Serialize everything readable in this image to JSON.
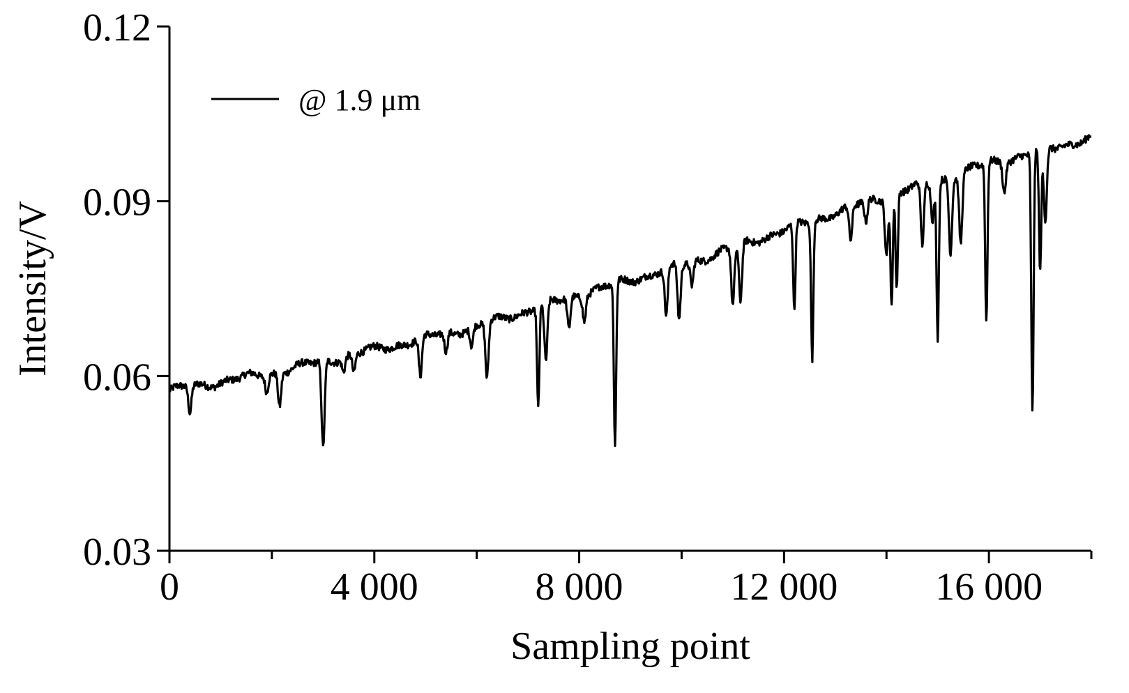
{
  "chart_data": {
    "type": "line",
    "title": "",
    "xlabel": "Sampling point",
    "ylabel": "Intensity/V",
    "xlim": [
      0,
      18000
    ],
    "ylim": [
      0.03,
      0.12
    ],
    "xticks": [
      {
        "value": 0,
        "label": "0"
      },
      {
        "value": 4000,
        "label": "4 000"
      },
      {
        "value": 8000,
        "label": "8 000"
      },
      {
        "value": 12000,
        "label": "12 000"
      },
      {
        "value": 16000,
        "label": "16 000"
      }
    ],
    "yticks": [
      {
        "value": 0.03,
        "label": "0.03"
      },
      {
        "value": 0.06,
        "label": "0.06"
      },
      {
        "value": 0.09,
        "label": "0.09"
      },
      {
        "value": 0.12,
        "label": "0.12"
      }
    ],
    "grid": false,
    "legend": {
      "position": "top-left"
    },
    "series": [
      {
        "name": "@ 1.9 μm",
        "color": "#000000",
        "baseline": {
          "x": [
            0,
            2000,
            4000,
            6000,
            8000,
            10000,
            12000,
            13000,
            14000,
            15000,
            16000,
            17000,
            18000
          ],
          "y": [
            0.0575,
            0.0605,
            0.0645,
            0.0685,
            0.074,
            0.079,
            0.085,
            0.088,
            0.091,
            0.0935,
            0.0965,
            0.0985,
            0.101
          ]
        },
        "dips": [
          {
            "x": 400,
            "y": 0.0535
          },
          {
            "x": 1900,
            "y": 0.0575
          },
          {
            "x": 2150,
            "y": 0.055
          },
          {
            "x": 3000,
            "y": 0.0475
          },
          {
            "x": 3400,
            "y": 0.061
          },
          {
            "x": 3600,
            "y": 0.0605
          },
          {
            "x": 4900,
            "y": 0.0595
          },
          {
            "x": 5400,
            "y": 0.064
          },
          {
            "x": 5900,
            "y": 0.065
          },
          {
            "x": 6200,
            "y": 0.0595
          },
          {
            "x": 7200,
            "y": 0.0545
          },
          {
            "x": 7350,
            "y": 0.062
          },
          {
            "x": 7800,
            "y": 0.068
          },
          {
            "x": 8100,
            "y": 0.07
          },
          {
            "x": 8700,
            "y": 0.0475
          },
          {
            "x": 9700,
            "y": 0.07
          },
          {
            "x": 9950,
            "y": 0.0695
          },
          {
            "x": 10200,
            "y": 0.0755
          },
          {
            "x": 11000,
            "y": 0.072
          },
          {
            "x": 11150,
            "y": 0.0725
          },
          {
            "x": 12200,
            "y": 0.0705
          },
          {
            "x": 12550,
            "y": 0.063
          },
          {
            "x": 13300,
            "y": 0.083
          },
          {
            "x": 13600,
            "y": 0.086
          },
          {
            "x": 14000,
            "y": 0.081
          },
          {
            "x": 14100,
            "y": 0.072
          },
          {
            "x": 14200,
            "y": 0.075
          },
          {
            "x": 14700,
            "y": 0.082
          },
          {
            "x": 14900,
            "y": 0.087
          },
          {
            "x": 15000,
            "y": 0.0665
          },
          {
            "x": 15250,
            "y": 0.0815
          },
          {
            "x": 15450,
            "y": 0.083
          },
          {
            "x": 15950,
            "y": 0.069
          },
          {
            "x": 16300,
            "y": 0.092
          },
          {
            "x": 16850,
            "y": 0.0535
          },
          {
            "x": 17000,
            "y": 0.077
          },
          {
            "x": 17100,
            "y": 0.086
          }
        ]
      }
    ]
  }
}
